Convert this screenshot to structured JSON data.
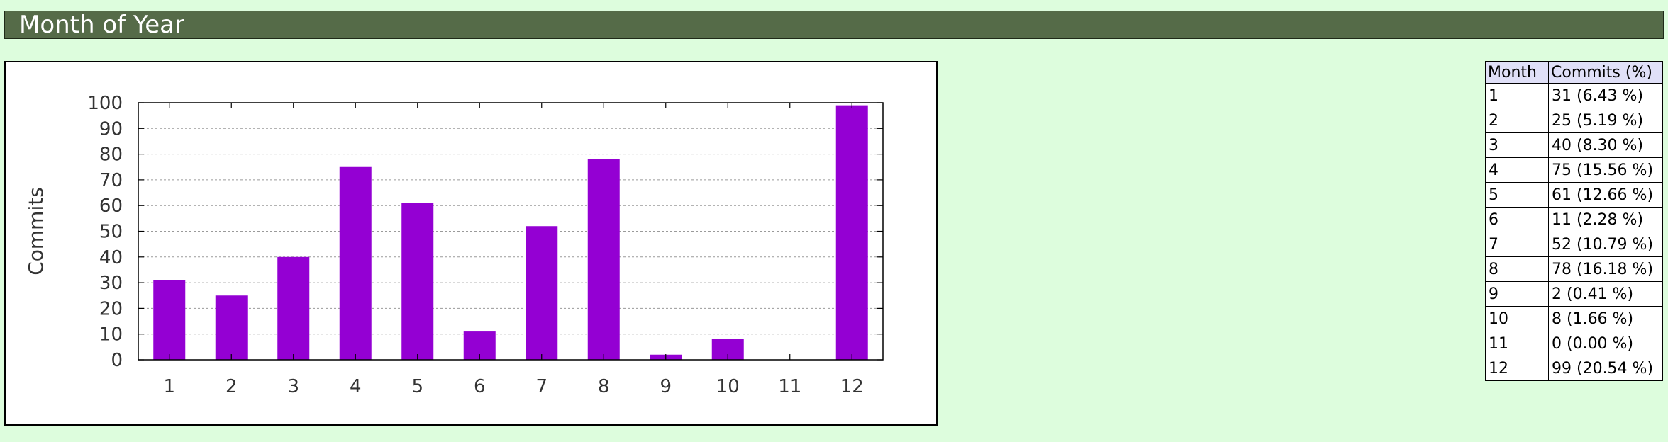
{
  "header": {
    "title": "Month of Year"
  },
  "table": {
    "headers": [
      "Month",
      "Commits (%)"
    ],
    "rows": [
      [
        "1",
        "31 (6.43 %)"
      ],
      [
        "2",
        "25 (5.19 %)"
      ],
      [
        "3",
        "40 (8.30 %)"
      ],
      [
        "4",
        "75 (15.56 %)"
      ],
      [
        "5",
        "61 (12.66 %)"
      ],
      [
        "6",
        "11 (2.28 %)"
      ],
      [
        "7",
        "52 (10.79 %)"
      ],
      [
        "8",
        "78 (16.18 %)"
      ],
      [
        "9",
        "2 (0.41 %)"
      ],
      [
        "10",
        "8 (1.66 %)"
      ],
      [
        "11",
        "0 (0.00 %)"
      ],
      [
        "12",
        "99 (20.54 %)"
      ]
    ]
  },
  "chart_data": {
    "type": "bar",
    "categories": [
      "1",
      "2",
      "3",
      "4",
      "5",
      "6",
      "7",
      "8",
      "9",
      "10",
      "11",
      "12"
    ],
    "values": [
      31,
      25,
      40,
      75,
      61,
      11,
      52,
      78,
      2,
      8,
      0,
      99
    ],
    "title": "",
    "xlabel": "",
    "ylabel": "Commits",
    "ylim": [
      0,
      100
    ],
    "yticks": [
      0,
      10,
      20,
      30,
      40,
      50,
      60,
      70,
      80,
      90,
      100
    ],
    "grid": true,
    "bar_color": "#9400d3"
  }
}
